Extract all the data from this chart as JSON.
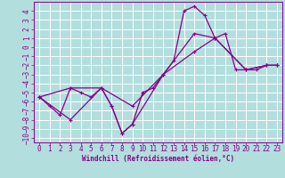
{
  "xlabel": "Windchill (Refroidissement éolien,°C)",
  "background_color": "#b2dede",
  "grid_color": "#ffffff",
  "line_color": "#880088",
  "spine_color": "#880088",
  "tick_color": "#880088",
  "xlim": [
    -0.5,
    23.5
  ],
  "ylim": [
    -10.5,
    5.0
  ],
  "xticks": [
    0,
    1,
    2,
    3,
    4,
    5,
    6,
    7,
    8,
    9,
    10,
    11,
    12,
    13,
    14,
    15,
    16,
    17,
    18,
    19,
    20,
    21,
    22,
    23
  ],
  "yticks": [
    4,
    3,
    2,
    1,
    0,
    -1,
    -2,
    -3,
    -4,
    -5,
    -6,
    -7,
    -8,
    -9,
    -10
  ],
  "series": [
    {
      "x": [
        0,
        1,
        2,
        3,
        4,
        5,
        6,
        7,
        8,
        9,
        10,
        11,
        12,
        13,
        14,
        15,
        16,
        17,
        18,
        19,
        20,
        21,
        22,
        23
      ],
      "y": [
        -5.5,
        -6.5,
        -7.5,
        -4.5,
        -5.0,
        -5.5,
        -4.5,
        -6.5,
        -9.5,
        -8.5,
        -5.0,
        -4.5,
        -3.0,
        -1.5,
        4.0,
        4.5,
        3.5,
        1.0,
        1.5,
        -2.5,
        -2.5,
        -2.5,
        -2.0,
        -2.0
      ]
    },
    {
      "x": [
        0,
        3,
        6,
        9,
        12,
        15,
        17,
        20,
        22,
        23
      ],
      "y": [
        -5.5,
        -4.5,
        -4.5,
        -6.5,
        -3.0,
        1.5,
        1.0,
        -2.5,
        -2.0,
        -2.0
      ]
    },
    {
      "x": [
        0,
        3,
        6,
        7,
        8,
        9,
        12,
        15,
        17,
        20,
        22,
        23
      ],
      "y": [
        -5.5,
        -8.0,
        -4.5,
        -6.5,
        -9.5,
        -8.5,
        -3.0,
        -0.5,
        1.0,
        -2.5,
        -2.0,
        -2.0
      ]
    }
  ]
}
